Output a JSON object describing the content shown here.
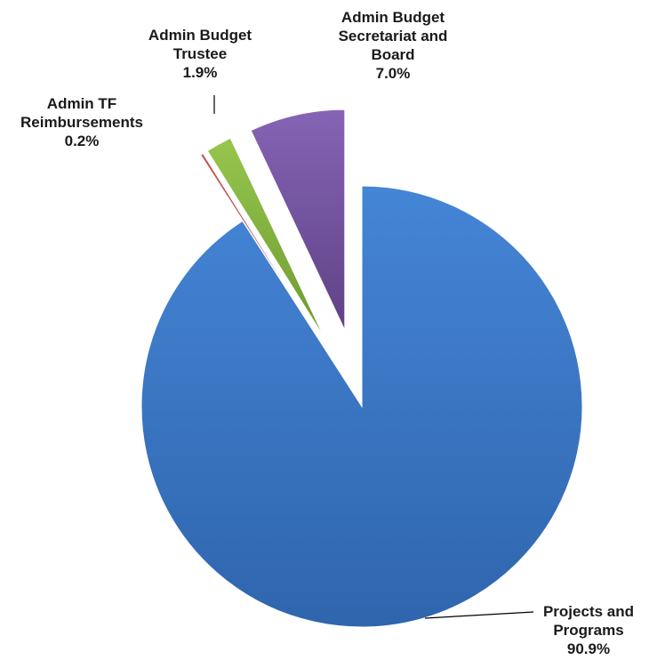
{
  "chart_data": {
    "type": "pie",
    "title": "",
    "slices": [
      {
        "label_lines": [
          "Projects and",
          "Programs"
        ],
        "pct_text": "90.9%",
        "value": 90.9,
        "color": "#3d78c9",
        "exploded": false
      },
      {
        "label_lines": [
          "Admin TF",
          "Reimbursements"
        ],
        "pct_text": "0.2%",
        "value": 0.2,
        "color": "#c0504d",
        "exploded": true
      },
      {
        "label_lines": [
          "Admin Budget",
          "Trustee"
        ],
        "pct_text": "1.9%",
        "value": 1.9,
        "color": "#8ab843",
        "exploded": true
      },
      {
        "label_lines": [
          "Admin Budget",
          "Secretariat and",
          "Board"
        ],
        "pct_text": "7.0%",
        "value": 7.0,
        "color": "#7a5aa6",
        "exploded": true
      }
    ],
    "legend": "none",
    "start_angle": "12 o'clock, clockwise"
  }
}
